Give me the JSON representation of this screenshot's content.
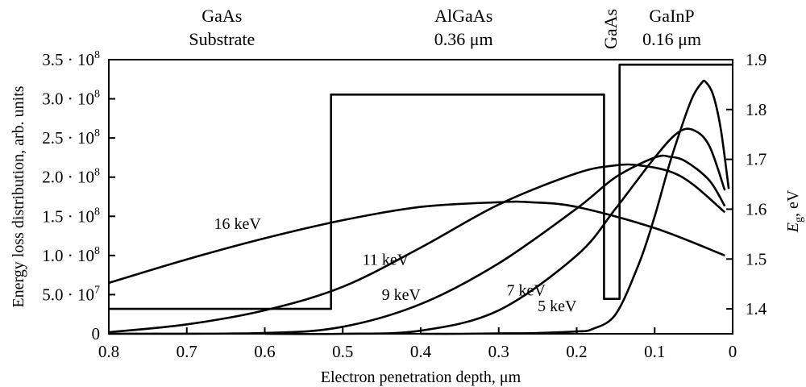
{
  "chart_data": {
    "type": "line",
    "xlabel": "Electron penetration depth, μm",
    "ylabel": "Energy loss distribution, arb. units",
    "y2label": {
      "main": "E",
      "sub": "g",
      "unit": ", eV"
    },
    "x_reversed": true,
    "xlim": [
      0.8,
      0
    ],
    "ylim": [
      0,
      350000000
    ],
    "y2lim": [
      1.35,
      1.9
    ],
    "x_ticks": [
      {
        "value": 0.8,
        "label": "0.8"
      },
      {
        "value": 0.7,
        "label": "0.7"
      },
      {
        "value": 0.6,
        "label": "0.6"
      },
      {
        "value": 0.5,
        "label": "0.5"
      },
      {
        "value": 0.4,
        "label": "0.4"
      },
      {
        "value": 0.3,
        "label": "0.3"
      },
      {
        "value": 0.2,
        "label": "0.2"
      },
      {
        "value": 0.1,
        "label": "0.1"
      },
      {
        "value": 0,
        "label": "0"
      }
    ],
    "y_ticks": [
      {
        "value": 0,
        "mant": "0",
        "exp": ""
      },
      {
        "value": 50000000,
        "mant": "5.0 · 10",
        "exp": "7"
      },
      {
        "value": 100000000,
        "mant": "1.0 · 10",
        "exp": "8"
      },
      {
        "value": 150000000,
        "mant": "1.5 · 10",
        "exp": "8"
      },
      {
        "value": 200000000,
        "mant": "2.0 · 10",
        "exp": "8"
      },
      {
        "value": 250000000,
        "mant": "2.5 · 10",
        "exp": "8"
      },
      {
        "value": 300000000,
        "mant": "3.0 · 10",
        "exp": "8"
      },
      {
        "value": 350000000,
        "mant": "3.5 · 10",
        "exp": "8"
      }
    ],
    "y2_ticks": [
      {
        "value": 1.4,
        "label": "1.4"
      },
      {
        "value": 1.5,
        "label": "1.5"
      },
      {
        "value": 1.6,
        "label": "1.6"
      },
      {
        "value": 1.7,
        "label": "1.7"
      },
      {
        "value": 1.8,
        "label": "1.8"
      },
      {
        "value": 1.9,
        "label": "1.9"
      }
    ],
    "series": [
      {
        "name": "16 keV",
        "axis": "left",
        "x": [
          0.8,
          0.7,
          0.6,
          0.5,
          0.4,
          0.3,
          0.26,
          0.2,
          0.1,
          0.01
        ],
        "y": [
          65000000,
          95000000,
          122000000,
          145000000,
          162000000,
          168000000,
          168000000,
          162000000,
          135000000,
          100000000
        ]
      },
      {
        "name": "11 keV",
        "axis": "left",
        "x": [
          0.8,
          0.7,
          0.6,
          0.5,
          0.4,
          0.3,
          0.2,
          0.15,
          0.12,
          0.08,
          0.05,
          0.01
        ],
        "y": [
          2000000,
          12000000,
          30000000,
          60000000,
          110000000,
          165000000,
          205000000,
          215000000,
          215000000,
          207000000,
          190000000,
          155000000
        ]
      },
      {
        "name": "9 keV",
        "axis": "left",
        "x": [
          0.8,
          0.6,
          0.5,
          0.4,
          0.3,
          0.2,
          0.15,
          0.1,
          0.08,
          0.06,
          0.03,
          0.01
        ],
        "y": [
          0,
          1000000,
          9000000,
          38000000,
          90000000,
          160000000,
          200000000,
          225000000,
          226000000,
          220000000,
          196000000,
          163000000
        ]
      },
      {
        "name": "7 keV",
        "axis": "left",
        "x": [
          0.6,
          0.5,
          0.4,
          0.3,
          0.2,
          0.15,
          0.1,
          0.07,
          0.05,
          0.03,
          0.01
        ],
        "y": [
          0,
          0,
          4000000,
          30000000,
          100000000,
          160000000,
          225000000,
          257000000,
          260000000,
          240000000,
          183000000
        ]
      },
      {
        "name": "5 keV",
        "axis": "left",
        "x": [
          0.4,
          0.35,
          0.3,
          0.25,
          0.2,
          0.18,
          0.15,
          0.12,
          0.1,
          0.08,
          0.06,
          0.05,
          0.04,
          0.035,
          0.025,
          0.015,
          0.005
        ],
        "y": [
          0,
          0,
          500000,
          1000000,
          3000000,
          6000000,
          25000000,
          90000000,
          150000000,
          220000000,
          280000000,
          305000000,
          320000000,
          322000000,
          305000000,
          260000000,
          185000000
        ]
      },
      {
        "name": "Eg",
        "axis": "right",
        "x": [
          0.8,
          0.515,
          0.515,
          0.165,
          0.165,
          0.145,
          0.145,
          0
        ],
        "y": [
          1.4,
          1.4,
          1.83,
          1.83,
          1.42,
          1.42,
          1.89,
          1.89
        ]
      }
    ],
    "curve_labels": [
      {
        "series": "16 keV",
        "text": "16 keV",
        "x": 0.635,
        "y": 134000000
      },
      {
        "series": "11 keV",
        "text": "11 keV",
        "x": 0.445,
        "y": 88000000
      },
      {
        "series": "9 keV",
        "text": "9 keV",
        "x": 0.425,
        "y": 43000000
      },
      {
        "series": "7 keV",
        "text": "7 keV",
        "x": 0.265,
        "y": 49000000
      },
      {
        "series": "5 keV",
        "text": "5 keV",
        "x": 0.225,
        "y": 29000000
      }
    ],
    "regions": [
      {
        "lines": [
          "GaAs",
          "Substrate"
        ],
        "x": 0.655
      },
      {
        "lines": [
          "AlGaAs",
          "0.36 μm"
        ],
        "x": 0.345
      },
      {
        "lines": [
          "GaInP",
          "0.16 μm"
        ],
        "x": 0.078
      }
    ],
    "rotated_label": {
      "text": "GaAs",
      "x": 0.155
    },
    "grid": false,
    "legend": "none"
  }
}
